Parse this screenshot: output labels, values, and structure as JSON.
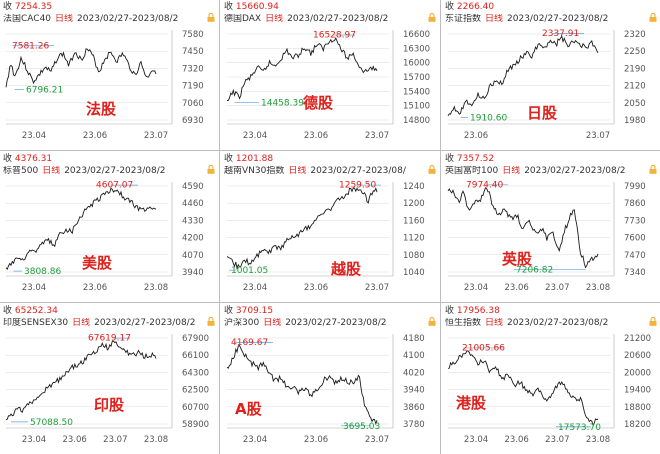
{
  "colors": {
    "line": "#1a1a1a",
    "red": "#e0201b",
    "green": "#1e9e3a",
    "axis": "#555555",
    "grid": "#d9d9d9"
  },
  "panels": [
    {
      "prev_label": "收",
      "prev_value": "7254.35",
      "name": "法国CAC40",
      "period": "日线",
      "range": "2023/02/27-2023/08/2",
      "watermark": "法股",
      "max_label": "7581.26",
      "min_label": "6796.21",
      "y_ticks": [
        "7580",
        "7450",
        "7320",
        "7190",
        "7060",
        "6930"
      ],
      "x_ticks": [
        "23.04",
        "23.06",
        "23.07"
      ],
      "y_range": [
        6780,
        7600
      ]
    },
    {
      "prev_label": "收",
      "prev_value": "15660.94",
      "name": "德国DAX",
      "period": "日线",
      "range": "2023/02/27-2023/08/2",
      "watermark": "德股",
      "max_label": "16528.97",
      "min_label": "14458.39",
      "y_ticks": [
        "16600",
        "16300",
        "16000",
        "15700",
        "15400",
        "15100",
        "14800"
      ],
      "x_ticks": [
        "23.04",
        "23.06",
        "23.07"
      ],
      "y_range": [
        14400,
        16650
      ]
    },
    {
      "prev_label": "收",
      "prev_value": "2266.40",
      "name": "东证指数",
      "period": "日线",
      "range": "2023/02/27-2023/08/2",
      "watermark": "日股",
      "max_label": "2337.91",
      "min_label": "1910.60",
      "y_ticks": [
        "2320",
        "2250",
        "2190",
        "2120",
        "2050",
        "1980"
      ],
      "x_ticks": [
        "23.06",
        "23.07"
      ],
      "y_range": [
        1900,
        2350
      ]
    },
    {
      "prev_label": "收",
      "prev_value": "4376.31",
      "name": "标普500",
      "period": "日线",
      "range": "2023/02/27-2023/08/2",
      "watermark": "美股",
      "max_label": "4607.07",
      "min_label": "3808.86",
      "y_ticks": [
        "4590",
        "4460",
        "4330",
        "4200",
        "4070",
        "3940"
      ],
      "x_ticks": [
        "23.04",
        "23.06",
        "23.08"
      ],
      "y_range": [
        3790,
        4620
      ]
    },
    {
      "prev_label": "收",
      "prev_value": "1201.88",
      "name": "越南VN30指数",
      "period": "日线",
      "range": "2023/02/27-2023/08/",
      "watermark": "越股",
      "max_label": "1259.50",
      "min_label": "1001.05",
      "y_ticks": [
        "1240",
        "1200",
        "1160",
        "1120",
        "1080",
        "1040"
      ],
      "x_ticks": [
        "23.04",
        "23.06",
        "23.07"
      ],
      "y_range": [
        995,
        1265
      ]
    },
    {
      "prev_label": "收",
      "prev_value": "7357.52",
      "name": "英国富时100",
      "period": "日线",
      "range": "2023/02/27-2023/08/2",
      "watermark": "英股",
      "max_label": "7974.40",
      "min_label": "7206.82",
      "y_ticks": [
        "7990",
        "7860",
        "7730",
        "7600",
        "7470",
        "7340"
      ],
      "x_ticks": [
        "23.04",
        "23.06",
        "23.07",
        "23.08"
      ],
      "y_range": [
        7190,
        8000
      ]
    },
    {
      "prev_label": "收",
      "prev_value": "65252.34",
      "name": "印度SENSEX30",
      "period": "日线",
      "range": "2023/02/27-2023/08/2",
      "watermark": "印股",
      "max_label": "67619.17",
      "min_label": "57088.50",
      "y_ticks": [
        "67900",
        "66100",
        "64300",
        "62500",
        "60700",
        "58900"
      ],
      "x_ticks": [
        "23.04",
        "23.06",
        "23.07",
        "23.08"
      ],
      "y_range": [
        56900,
        68000
      ]
    },
    {
      "prev_label": "收",
      "prev_value": "3709.15",
      "name": "沪深300",
      "period": "日线",
      "range": "2023/02/27-2023/08/2",
      "watermark": "A股",
      "max_label": "4169.67",
      "min_label": "3695.03",
      "y_ticks": [
        "4180",
        "4100",
        "4020",
        "3940",
        "3860",
        "3780"
      ],
      "x_ticks": [
        "23.04",
        "23.06",
        "23.07"
      ],
      "y_range": [
        3680,
        4190
      ]
    },
    {
      "prev_label": "收",
      "prev_value": "17956.38",
      "name": "恒生指数",
      "period": "日线",
      "range": "2023/02/27-2023/08/2",
      "watermark": "港股",
      "max_label": "21005.66",
      "min_label": "17573.70",
      "y_ticks": [
        "21200",
        "20600",
        "20000",
        "19400",
        "18800",
        "18200"
      ],
      "x_ticks": [
        "23.04",
        "23.06",
        "23.07",
        "23.08"
      ],
      "y_range": [
        17500,
        21300
      ]
    }
  ]
}
